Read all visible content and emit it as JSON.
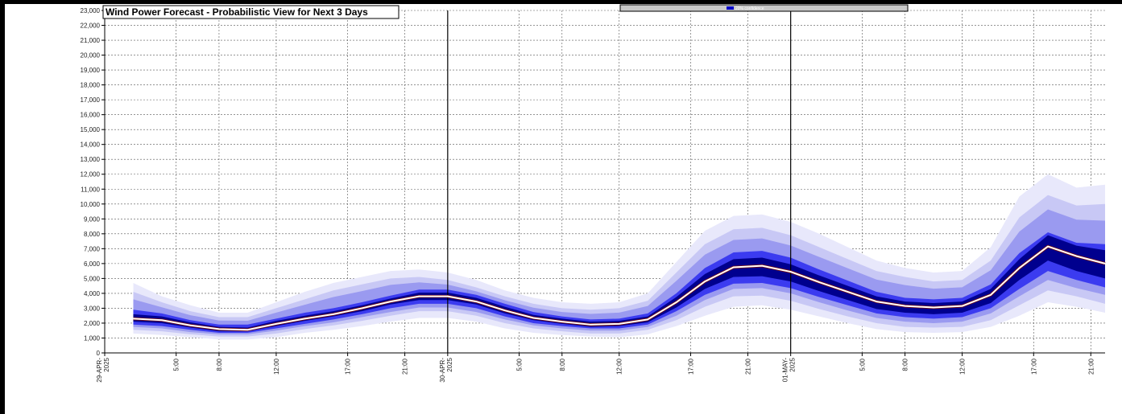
{
  "chart_data": {
    "type": "area",
    "title": "Wind Power Forecast - Probabilistic View for Next 3 Days",
    "legend": {
      "label": "20% confidence",
      "placement": "top"
    },
    "ylim": [
      0,
      23000
    ],
    "xlim": [
      0,
      70
    ],
    "y_ticks": [
      "0",
      "1,000",
      "2,000",
      "3,000",
      "4,000",
      "5,000",
      "6,000",
      "7,000",
      "8,000",
      "9,000",
      "10,000",
      "11,000",
      "12,000",
      "13,000",
      "14,000",
      "15,000",
      "16,000",
      "17,000",
      "18,000",
      "19,000",
      "20,000",
      "21,000",
      "22,000",
      "23,000"
    ],
    "x_ticks": [
      {
        "x": 0,
        "label": "29-APR-2025"
      },
      {
        "x": 5,
        "label": "5:00"
      },
      {
        "x": 8,
        "label": "8:00"
      },
      {
        "x": 12,
        "label": "12:00"
      },
      {
        "x": 17,
        "label": "17:00"
      },
      {
        "x": 21,
        "label": "21:00"
      },
      {
        "x": 24,
        "label": "30-APR-2025"
      },
      {
        "x": 29,
        "label": "5:00"
      },
      {
        "x": 32,
        "label": "8:00"
      },
      {
        "x": 36,
        "label": "12:00"
      },
      {
        "x": 41,
        "label": "17:00"
      },
      {
        "x": 45,
        "label": "21:00"
      },
      {
        "x": 48,
        "label": "01-MAY-2025"
      },
      {
        "x": 53,
        "label": "5:00"
      },
      {
        "x": 56,
        "label": "8:00"
      },
      {
        "x": 60,
        "label": "12:00"
      },
      {
        "x": 65,
        "label": "17:00"
      },
      {
        "x": 69,
        "label": "21:00"
      }
    ],
    "day_boundaries": [
      24,
      48
    ],
    "grid": true,
    "x": [
      2,
      4,
      6,
      8,
      10,
      12,
      14,
      16,
      18,
      20,
      22,
      24,
      26,
      28,
      30,
      32,
      34,
      36,
      38,
      40,
      42,
      44,
      46,
      48,
      50,
      52,
      54,
      56,
      58,
      60,
      62,
      64,
      66,
      68,
      70
    ],
    "forecast": [
      2300,
      2200,
      1850,
      1600,
      1550,
      1950,
      2300,
      2600,
      3000,
      3450,
      3800,
      3800,
      3450,
      2850,
      2350,
      2100,
      1900,
      1950,
      2250,
      3400,
      4800,
      5750,
      5850,
      5450,
      4750,
      4100,
      3450,
      3150,
      3050,
      3150,
      3900,
      5700,
      7150,
      6500,
      6000
    ],
    "bands": [
      {
        "name": "p5-p95",
        "lower": [
          1300,
          1200,
          1050,
          900,
          900,
          1050,
          1350,
          1550,
          1800,
          2100,
          2350,
          2350,
          2100,
          1650,
          1350,
          1200,
          1100,
          1050,
          1250,
          1800,
          2500,
          3100,
          3200,
          2900,
          2450,
          2000,
          1600,
          1400,
          1350,
          1400,
          1750,
          2500,
          3400,
          3100,
          2700
        ],
        "upper": [
          4700,
          3800,
          3200,
          2700,
          2700,
          3400,
          4100,
          4700,
          5100,
          5500,
          5600,
          5400,
          4900,
          4200,
          3700,
          3400,
          3300,
          3400,
          4000,
          6100,
          8200,
          9200,
          9300,
          8800,
          8000,
          7100,
          6200,
          5700,
          5400,
          5500,
          7100,
          10500,
          12000,
          11100,
          11300
        ]
      },
      {
        "name": "p15-p85",
        "lower": [
          1550,
          1450,
          1250,
          1100,
          1100,
          1300,
          1600,
          1850,
          2150,
          2500,
          2800,
          2800,
          2500,
          2000,
          1650,
          1450,
          1300,
          1300,
          1550,
          2200,
          3100,
          3800,
          3850,
          3500,
          2950,
          2450,
          2000,
          1750,
          1700,
          1750,
          2200,
          3200,
          4200,
          3800,
          3300
        ],
        "upper": [
          4100,
          3400,
          2800,
          2400,
          2400,
          3000,
          3600,
          4200,
          4600,
          5000,
          5100,
          4900,
          4400,
          3800,
          3300,
          3000,
          2900,
          3000,
          3500,
          5400,
          7300,
          8300,
          8400,
          7900,
          7100,
          6300,
          5500,
          5100,
          4800,
          4900,
          6200,
          9100,
          10600,
          9900,
          10000
        ]
      },
      {
        "name": "p25-p75",
        "lower": [
          1750,
          1650,
          1400,
          1250,
          1250,
          1500,
          1800,
          2050,
          2400,
          2750,
          3050,
          3050,
          2750,
          2250,
          1850,
          1650,
          1500,
          1500,
          1750,
          2500,
          3550,
          4300,
          4350,
          4000,
          3400,
          2850,
          2350,
          2100,
          2000,
          2100,
          2650,
          3800,
          4900,
          4350,
          3900
        ]
      },
      {
        "name": "p35-p65",
        "lower": [
          1900,
          1800,
          1550,
          1350,
          1350,
          1650,
          1950,
          2250,
          2600,
          3000,
          3300,
          3300,
          3000,
          2450,
          2000,
          1800,
          1650,
          1650,
          1900,
          2800,
          3900,
          4650,
          4700,
          4350,
          3750,
          3200,
          2650,
          2400,
          2300,
          2400,
          3000,
          4300,
          5500,
          4900,
          4400
        ],
        "upper": [
          2900,
          2650,
          2200,
          1900,
          1900,
          2300,
          2700,
          3000,
          3400,
          3850,
          4250,
          4250,
          3900,
          3300,
          2750,
          2450,
          2250,
          2300,
          2650,
          4000,
          5700,
          6750,
          6850,
          6400,
          5600,
          4850,
          4100,
          3700,
          3600,
          3700,
          4600,
          6700,
          8100,
          7400,
          7300
        ]
      },
      {
        "name": "p45-p55",
        "lower": [
          2100,
          2000,
          1700,
          1450,
          1450,
          1800,
          2150,
          2450,
          2800,
          3250,
          3550,
          3550,
          3250,
          2650,
          2200,
          1950,
          1750,
          1800,
          2050,
          3050,
          4300,
          5100,
          5150,
          4800,
          4150,
          3550,
          2950,
          2700,
          2600,
          2700,
          3350,
          4900,
          6200,
          5500,
          5000
        ],
        "upper": [
          2600,
          2450,
          2050,
          1750,
          1700,
          2150,
          2500,
          2800,
          3200,
          3650,
          4050,
          4050,
          3700,
          3100,
          2550,
          2300,
          2100,
          2150,
          2450,
          3750,
          5300,
          6300,
          6400,
          5950,
          5200,
          4500,
          3800,
          3450,
          3350,
          3450,
          4300,
          6300,
          7900,
          7200,
          6900
        ]
      }
    ],
    "colors": {
      "outer_band": "#e8e8fb",
      "band2": "#c8c8f5",
      "band3": "#9a9af0",
      "band4": "#3b3bf0",
      "inner_band": "#00008e",
      "forecast_line": "#ffffff",
      "legend_swatch": "#0000c8",
      "plot_bg": "#ffffff",
      "frame": "#000000"
    }
  }
}
